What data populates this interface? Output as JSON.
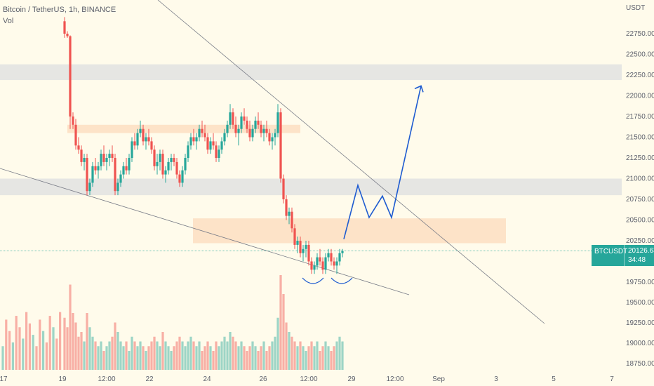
{
  "header": {
    "title": "Bitcoin / TetherUS, 1h, BINANCE",
    "vol_label": "Vol"
  },
  "price_tag": {
    "symbol": "BTCUSDT",
    "price": "20126.63",
    "countdown": "34:48"
  },
  "colors": {
    "background": "#fffbeb",
    "up": "#26a69a",
    "down": "#ef5350",
    "gray_zone": "#e6e6e3",
    "orange_zone": "#fde3c8",
    "projection": "#1e5bd0"
  },
  "chart_data": {
    "type": "candlestick",
    "symbol": "BTCUSDT",
    "y_axis": {
      "unit": "USDT",
      "ticks": [
        22750,
        22500,
        22250,
        22000,
        21750,
        21500,
        21250,
        21000,
        20750,
        20500,
        20250,
        19750,
        19500,
        19250,
        19000,
        18750
      ],
      "tick_labels": [
        "22750.00",
        "22500.00",
        "22250.00",
        "22000.00",
        "21750.00",
        "21500.00",
        "21250.00",
        "21000.00",
        "20750.00",
        "20500.00",
        "20250.00",
        "19750.00",
        "19500.00",
        "19250.00",
        "19000.00",
        "18750.00"
      ]
    },
    "x_axis": {
      "tick_labels": [
        "17",
        "19",
        "12:00",
        "22",
        "24",
        "26",
        "12:00",
        "29",
        "12:00",
        "Sep",
        "3",
        "5",
        "7"
      ]
    },
    "current_price": 20126.63,
    "zones": [
      {
        "name": "gray-upper",
        "from": 22190,
        "to": 22380
      },
      {
        "name": "gray-lower",
        "from": 20800,
        "to": 21000
      },
      {
        "name": "orange-upper",
        "from": 21550,
        "to": 21650
      },
      {
        "name": "orange-lower",
        "from": 20220,
        "to": 20520
      }
    ],
    "price_path": [
      [
        22900,
        22950,
        22700,
        22750
      ],
      [
        22750,
        22780,
        22700,
        22720
      ],
      [
        22720,
        22730,
        21600,
        21750
      ],
      [
        21750,
        21800,
        21600,
        21650
      ],
      [
        21650,
        21720,
        21350,
        21400
      ],
      [
        21400,
        21500,
        21300,
        21350
      ],
      [
        21350,
        21400,
        21150,
        21200
      ],
      [
        21200,
        21300,
        21100,
        21250
      ],
      [
        21250,
        21300,
        20800,
        20850
      ],
      [
        20850,
        21000,
        20800,
        20950
      ],
      [
        20950,
        21200,
        20900,
        21150
      ],
      [
        21150,
        21250,
        21050,
        21100
      ],
      [
        21100,
        21200,
        21000,
        21150
      ],
      [
        21150,
        21350,
        21100,
        21300
      ],
      [
        21300,
        21400,
        21150,
        21200
      ],
      [
        21200,
        21300,
        21100,
        21250
      ],
      [
        21250,
        21350,
        21150,
        21300
      ],
      [
        21300,
        21400,
        21200,
        21250
      ],
      [
        21250,
        21300,
        20800,
        20850
      ],
      [
        20850,
        21000,
        20800,
        20950
      ],
      [
        20950,
        21100,
        20900,
        21050
      ],
      [
        21050,
        21200,
        21000,
        21150
      ],
      [
        21150,
        21250,
        21050,
        21100
      ],
      [
        21100,
        21300,
        21050,
        21250
      ],
      [
        21250,
        21500,
        21200,
        21450
      ],
      [
        21450,
        21550,
        21350,
        21400
      ],
      [
        21400,
        21600,
        21350,
        21550
      ],
      [
        21550,
        21700,
        21500,
        21600
      ],
      [
        21600,
        21650,
        21400,
        21450
      ],
      [
        21450,
        21550,
        21350,
        21500
      ],
      [
        21500,
        21600,
        21400,
        21450
      ],
      [
        21450,
        21500,
        21300,
        21350
      ],
      [
        21350,
        21400,
        21100,
        21150
      ],
      [
        21150,
        21300,
        21050,
        21200
      ],
      [
        21200,
        21350,
        21100,
        21300
      ],
      [
        21300,
        21350,
        21000,
        21050
      ],
      [
        21050,
        21150,
        20950,
        21100
      ],
      [
        21100,
        21250,
        21050,
        21200
      ],
      [
        21200,
        21300,
        21100,
        21250
      ],
      [
        21250,
        21300,
        21150,
        21200
      ],
      [
        21200,
        21250,
        21000,
        21050
      ],
      [
        21050,
        21100,
        20900,
        20950
      ],
      [
        20950,
        21150,
        20900,
        21100
      ],
      [
        21100,
        21300,
        21050,
        21250
      ],
      [
        21250,
        21450,
        21200,
        21400
      ],
      [
        21400,
        21550,
        21350,
        21500
      ],
      [
        21500,
        21600,
        21400,
        21450
      ],
      [
        21450,
        21550,
        21350,
        21500
      ],
      [
        21500,
        21650,
        21450,
        21600
      ],
      [
        21600,
        21700,
        21500,
        21550
      ],
      [
        21550,
        21650,
        21450,
        21500
      ],
      [
        21500,
        21550,
        21300,
        21350
      ],
      [
        21350,
        21500,
        21300,
        21450
      ],
      [
        21450,
        21550,
        21350,
        21400
      ],
      [
        21400,
        21450,
        21200,
        21250
      ],
      [
        21250,
        21400,
        21200,
        21350
      ],
      [
        21350,
        21500,
        21300,
        21450
      ],
      [
        21450,
        21600,
        21400,
        21550
      ],
      [
        21550,
        21700,
        21500,
        21650
      ],
      [
        21650,
        21900,
        21600,
        21800
      ],
      [
        21800,
        21850,
        21600,
        21650
      ],
      [
        21650,
        21750,
        21500,
        21550
      ],
      [
        21550,
        21650,
        21400,
        21600
      ],
      [
        21600,
        21800,
        21550,
        21750
      ],
      [
        21750,
        21850,
        21650,
        21700
      ],
      [
        21700,
        21750,
        21550,
        21600
      ],
      [
        21600,
        21700,
        21450,
        21500
      ],
      [
        21500,
        21650,
        21450,
        21600
      ],
      [
        21600,
        21750,
        21550,
        21700
      ],
      [
        21700,
        21800,
        21600,
        21650
      ],
      [
        21650,
        21700,
        21500,
        21550
      ],
      [
        21550,
        21650,
        21450,
        21600
      ],
      [
        21600,
        21700,
        21500,
        21550
      ],
      [
        21550,
        21600,
        21400,
        21450
      ],
      [
        21450,
        21550,
        21350,
        21500
      ],
      [
        21500,
        21600,
        21400,
        21550
      ],
      [
        21550,
        21900,
        21500,
        21800
      ],
      [
        21800,
        21850,
        20950,
        21000
      ],
      [
        21000,
        21050,
        20700,
        20750
      ],
      [
        20750,
        20800,
        20500,
        20550
      ],
      [
        20550,
        20650,
        20450,
        20600
      ],
      [
        20600,
        20650,
        20350,
        20400
      ],
      [
        20400,
        20450,
        20150,
        20200
      ],
      [
        20200,
        20300,
        20100,
        20250
      ],
      [
        20250,
        20300,
        20050,
        20100
      ],
      [
        20100,
        20200,
        20000,
        20150
      ],
      [
        20150,
        20250,
        20050,
        20200
      ],
      [
        20200,
        20250,
        19950,
        20000
      ],
      [
        20000,
        20050,
        19850,
        19900
      ],
      [
        19900,
        20000,
        19850,
        19950
      ],
      [
        19950,
        20100,
        19900,
        20050
      ],
      [
        20050,
        20150,
        19950,
        20000
      ],
      [
        20000,
        20050,
        19850,
        19900
      ],
      [
        19900,
        20100,
        19850,
        20050
      ],
      [
        20050,
        20150,
        20000,
        20100
      ],
      [
        20100,
        20150,
        19950,
        20000
      ],
      [
        20000,
        20050,
        19900,
        19950
      ],
      [
        19950,
        20050,
        19850,
        20000
      ],
      [
        20000,
        20150,
        19950,
        20100
      ],
      [
        20100,
        20150,
        20050,
        20126.63
      ]
    ],
    "volume": [
      0.55,
      0.45,
      0.9,
      0.6,
      0.5,
      0.35,
      0.4,
      0.3,
      0.6,
      0.45,
      0.35,
      0.3,
      0.25,
      0.3,
      0.2,
      0.25,
      0.3,
      0.35,
      0.5,
      0.4,
      0.3,
      0.25,
      0.3,
      0.2,
      0.35,
      0.3,
      0.25,
      0.3,
      0.25,
      0.2,
      0.25,
      0.3,
      0.35,
      0.3,
      0.25,
      0.4,
      0.3,
      0.25,
      0.2,
      0.25,
      0.3,
      0.35,
      0.3,
      0.25,
      0.3,
      0.35,
      0.3,
      0.25,
      0.3,
      0.2,
      0.25,
      0.3,
      0.25,
      0.2,
      0.3,
      0.25,
      0.3,
      0.35,
      0.3,
      0.4,
      0.35,
      0.3,
      0.25,
      0.3,
      0.25,
      0.2,
      0.25,
      0.3,
      0.25,
      0.2,
      0.25,
      0.3,
      0.2,
      0.25,
      0.3,
      0.35,
      0.55,
      1.0,
      0.8,
      0.5,
      0.4,
      0.35,
      0.3,
      0.25,
      0.3,
      0.25,
      0.2,
      0.25,
      0.3,
      0.25,
      0.3,
      0.2,
      0.25,
      0.3,
      0.25,
      0.2,
      0.25,
      0.3,
      0.35,
      0.3
    ],
    "projection": [
      [
        20270
      ],
      [
        20920
      ],
      [
        20530
      ],
      [
        20790
      ],
      [
        20530
      ],
      [
        22120
      ]
    ]
  }
}
